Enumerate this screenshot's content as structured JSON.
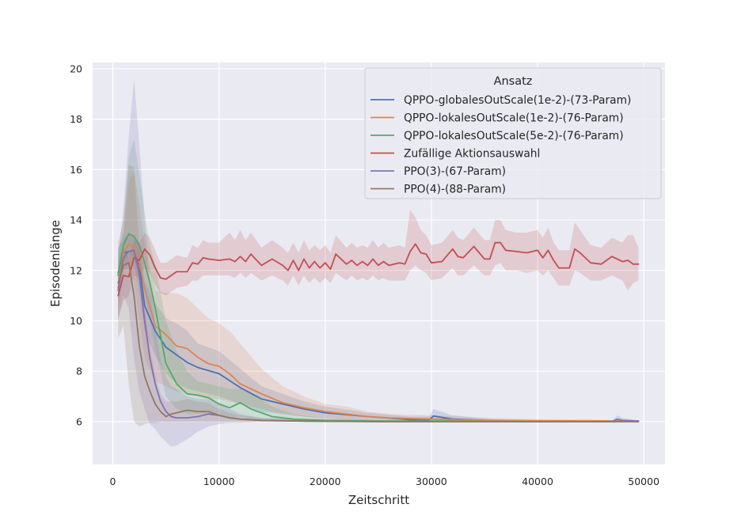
{
  "chart_data": {
    "type": "line",
    "title": "",
    "xlabel": "Zeitschritt",
    "ylabel": "Episodenlänge",
    "xlim": [
      -1900,
      52000
    ],
    "ylim": [
      4.3,
      20.25
    ],
    "xticks": [
      0,
      10000,
      20000,
      30000,
      40000,
      50000
    ],
    "xtick_labels": [
      "0",
      "10000",
      "20000",
      "30000",
      "40000",
      "50000"
    ],
    "yticks": [
      6,
      8,
      10,
      12,
      14,
      16,
      18,
      20
    ],
    "ytick_labels": [
      "6",
      "8",
      "10",
      "12",
      "14",
      "16",
      "18",
      "20"
    ],
    "grid": true,
    "legend": {
      "title": "Ansatz",
      "placement": "top-right"
    },
    "series": [
      {
        "name": "QPPO-globalesOutScale(1e-2)-(73-Param)",
        "color": "#4c72b0",
        "x": [
          500,
          1000,
          1500,
          2000,
          2500,
          3000,
          4000,
          5000,
          6000,
          7000,
          8000,
          10000,
          12000,
          14000,
          16000,
          18000,
          20000,
          24000,
          28000,
          29800,
          30200,
          32000,
          36000,
          45000,
          49500
        ],
        "y": [
          11.9,
          12.7,
          12.75,
          12.8,
          12.2,
          10.6,
          9.6,
          8.95,
          8.65,
          8.35,
          8.15,
          7.9,
          7.35,
          6.9,
          6.7,
          6.5,
          6.35,
          6.2,
          6.08,
          6.07,
          6.22,
          6.1,
          6.03,
          6.02,
          6.02
        ],
        "lower": [
          10.8,
          12.0,
          12.1,
          12.2,
          11.2,
          9.6,
          8.6,
          7.9,
          7.5,
          7.3,
          7.2,
          7.0,
          6.7,
          6.4,
          6.3,
          6.2,
          6.1,
          6.05,
          6.0,
          6.0,
          6.0,
          6.0,
          6.0,
          6.0,
          6.0
        ],
        "upper": [
          12.9,
          13.3,
          13.4,
          13.4,
          13.1,
          11.6,
          10.7,
          10.1,
          9.9,
          9.6,
          9.1,
          8.8,
          8.1,
          7.4,
          7.1,
          6.8,
          6.6,
          6.35,
          6.2,
          6.2,
          6.5,
          6.25,
          6.1,
          6.05,
          6.05
        ]
      },
      {
        "name": "QPPO-lokalesOutScale(1e-2)-(76-Param)",
        "color": "#dd8452",
        "x": [
          500,
          1000,
          1500,
          2000,
          2500,
          3000,
          4000,
          5000,
          6000,
          7000,
          8000,
          9000,
          10000,
          11000,
          12000,
          14000,
          16000,
          18000,
          20000,
          22000,
          24000,
          26000,
          30000,
          35000,
          40000,
          45000,
          49500
        ],
        "y": [
          11.3,
          12.7,
          13.05,
          12.9,
          12.3,
          11.3,
          9.8,
          9.45,
          9.0,
          8.9,
          8.55,
          8.3,
          8.2,
          7.9,
          7.5,
          7.1,
          6.75,
          6.55,
          6.4,
          6.3,
          6.2,
          6.15,
          6.1,
          6.05,
          6.03,
          6.03,
          6.02
        ],
        "lower": [
          10.3,
          12.0,
          12.3,
          11.5,
          10.0,
          8.5,
          7.6,
          7.4,
          7.2,
          7.1,
          7.0,
          6.9,
          6.9,
          6.8,
          6.7,
          6.5,
          6.3,
          6.2,
          6.15,
          6.1,
          6.05,
          6.02,
          6.0,
          6.0,
          6.0,
          6.0,
          6.0
        ],
        "upper": [
          12.3,
          13.3,
          15.5,
          15.9,
          14.6,
          13.0,
          11.2,
          11.1,
          11.1,
          10.9,
          10.5,
          10.1,
          9.9,
          9.6,
          9.1,
          8.1,
          7.4,
          7.0,
          6.7,
          6.6,
          6.4,
          6.3,
          6.25,
          6.15,
          6.1,
          6.08,
          6.05
        ]
      },
      {
        "name": "QPPO-lokalesOutScale(5e-2)-(76-Param)",
        "color": "#55a868",
        "x": [
          500,
          1000,
          1500,
          2000,
          2500,
          3000,
          3500,
          4000,
          5000,
          6000,
          7000,
          8000,
          9000,
          10000,
          11000,
          12000,
          13000,
          15000,
          17000,
          20000,
          25000,
          30000,
          40000,
          49500
        ],
        "y": [
          11.8,
          13.0,
          13.45,
          13.35,
          13.0,
          12.3,
          11.5,
          10.5,
          8.3,
          7.5,
          7.1,
          7.05,
          6.95,
          6.7,
          6.55,
          6.75,
          6.5,
          6.2,
          6.1,
          6.05,
          6.02,
          6.02,
          6.0,
          6.0
        ],
        "lower": [
          11.0,
          12.3,
          12.6,
          12.5,
          11.9,
          11.0,
          10.0,
          8.9,
          7.0,
          6.5,
          6.3,
          6.3,
          6.3,
          6.2,
          6.15,
          6.2,
          6.1,
          6.0,
          6.0,
          6.0,
          6.0,
          6.0,
          6.0,
          6.0
        ],
        "upper": [
          12.8,
          13.6,
          16.5,
          17.2,
          15.8,
          14.3,
          13.0,
          12.2,
          10.0,
          8.8,
          8.0,
          7.6,
          7.5,
          7.4,
          7.3,
          7.3,
          7.1,
          6.6,
          6.3,
          6.12,
          6.06,
          6.06,
          6.02,
          6.02
        ]
      },
      {
        "name": "Zufällige Aktionsauswahl",
        "color": "#c44e52",
        "x": [
          500,
          1000,
          1500,
          2000,
          2500,
          3000,
          3500,
          4000,
          4500,
          5000,
          6000,
          7000,
          7500,
          8000,
          8500,
          9000,
          10000,
          11000,
          11500,
          12000,
          12500,
          13000,
          14000,
          15000,
          16000,
          16500,
          17000,
          17500,
          18000,
          18500,
          19000,
          19500,
          20000,
          20500,
          21000,
          22000,
          22500,
          23000,
          23500,
          24000,
          24500,
          25000,
          25500,
          26000,
          27000,
          27500,
          28000,
          28500,
          29000,
          29500,
          30000,
          31000,
          32000,
          32500,
          33000,
          34000,
          35000,
          35500,
          36000,
          36500,
          37000,
          38000,
          39000,
          40000,
          40500,
          41000,
          41500,
          42000,
          43000,
          43500,
          44000,
          45000,
          46000,
          47000,
          48000,
          48500,
          49000,
          49500
        ],
        "y": [
          11.0,
          11.8,
          11.75,
          12.5,
          12.4,
          12.85,
          12.6,
          12.1,
          11.7,
          11.65,
          11.95,
          11.95,
          12.3,
          12.25,
          12.5,
          12.45,
          12.4,
          12.45,
          12.35,
          12.55,
          12.35,
          12.65,
          12.2,
          12.45,
          12.2,
          12.0,
          12.4,
          12.0,
          12.45,
          12.1,
          12.35,
          12.1,
          12.3,
          12.05,
          12.65,
          12.25,
          12.4,
          12.2,
          12.35,
          12.2,
          12.45,
          12.2,
          12.35,
          12.2,
          12.3,
          12.25,
          12.75,
          13.05,
          12.7,
          12.65,
          12.3,
          12.35,
          12.85,
          12.55,
          12.5,
          12.95,
          12.45,
          12.45,
          13.1,
          13.1,
          12.8,
          12.75,
          12.7,
          12.8,
          12.5,
          12.8,
          12.4,
          12.1,
          12.1,
          12.85,
          12.7,
          12.3,
          12.25,
          12.55,
          12.35,
          12.4,
          12.25,
          12.25
        ],
        "lower": [
          10.1,
          10.8,
          11.0,
          11.8,
          11.7,
          12.1,
          11.9,
          11.4,
          11.1,
          11.0,
          11.3,
          11.4,
          11.6,
          11.6,
          11.8,
          11.8,
          11.8,
          11.8,
          11.7,
          11.9,
          11.7,
          11.9,
          11.6,
          11.8,
          11.6,
          11.4,
          11.8,
          11.4,
          11.8,
          11.5,
          11.7,
          11.5,
          11.7,
          11.5,
          11.9,
          11.6,
          11.8,
          11.6,
          11.7,
          11.6,
          11.8,
          11.6,
          11.7,
          11.6,
          11.6,
          11.6,
          12.0,
          12.2,
          12.0,
          11.9,
          11.6,
          11.7,
          12.1,
          11.8,
          11.8,
          12.2,
          11.8,
          11.8,
          12.2,
          12.3,
          12.0,
          12.0,
          11.9,
          12.0,
          11.8,
          12.0,
          11.7,
          11.4,
          11.4,
          12.0,
          11.9,
          11.6,
          11.6,
          11.8,
          11.6,
          11.2,
          11.5,
          11.6
        ],
        "upper": [
          11.9,
          12.9,
          12.5,
          13.2,
          13.1,
          13.5,
          13.3,
          12.8,
          12.3,
          12.3,
          12.6,
          12.5,
          13.0,
          12.9,
          13.2,
          13.1,
          13.1,
          13.5,
          13.2,
          13.6,
          13.2,
          13.5,
          12.9,
          13.2,
          12.9,
          12.7,
          13.1,
          12.7,
          13.2,
          12.8,
          13.0,
          12.8,
          13.0,
          12.7,
          13.4,
          12.9,
          13.1,
          12.9,
          13.0,
          12.9,
          13.2,
          12.9,
          13.1,
          12.9,
          13.0,
          12.9,
          14.4,
          14.1,
          13.6,
          13.4,
          13.0,
          13.1,
          13.6,
          13.3,
          13.2,
          13.7,
          13.2,
          13.2,
          14.0,
          14.0,
          13.6,
          13.5,
          13.5,
          13.6,
          13.3,
          13.7,
          13.1,
          12.8,
          12.8,
          13.9,
          13.6,
          13.0,
          12.9,
          13.3,
          13.1,
          13.4,
          13.4,
          12.9
        ]
      },
      {
        "name": "PPO(3)-(67-Param)",
        "color": "#8172b3",
        "x": [
          500,
          1000,
          1500,
          2000,
          2500,
          3000,
          3500,
          4000,
          4500,
          5000,
          5500,
          6000,
          7000,
          8000,
          9000,
          10000,
          11000,
          12000,
          14000,
          18000,
          25000,
          30000,
          35000,
          40000,
          47000,
          47500,
          48000,
          49500
        ],
        "y": [
          11.2,
          12.5,
          12.75,
          12.8,
          11.8,
          10.0,
          8.5,
          7.5,
          6.8,
          6.4,
          6.2,
          6.15,
          6.15,
          6.2,
          6.3,
          6.25,
          6.15,
          6.1,
          6.05,
          6.02,
          6.0,
          6.0,
          6.0,
          6.0,
          6.0,
          6.1,
          6.05,
          6.02
        ],
        "lower": [
          10.0,
          11.0,
          10.5,
          8.5,
          7.2,
          6.5,
          5.9,
          5.7,
          5.4,
          5.2,
          5.0,
          5.05,
          5.3,
          5.6,
          5.8,
          5.9,
          5.95,
          5.95,
          6.0,
          6.0,
          6.0,
          6.0,
          6.0,
          6.0,
          6.0,
          6.0,
          6.0,
          6.0
        ],
        "upper": [
          12.4,
          14.5,
          17.3,
          19.6,
          17.0,
          14.0,
          11.5,
          9.8,
          8.5,
          7.8,
          7.4,
          7.3,
          7.0,
          6.9,
          6.9,
          6.7,
          6.5,
          6.3,
          6.15,
          6.1,
          6.03,
          6.03,
          6.02,
          6.02,
          6.02,
          6.25,
          6.15,
          6.05
        ]
      },
      {
        "name": "PPO(4)-(88-Param)",
        "color": "#937860",
        "x": [
          500,
          1000,
          1500,
          2000,
          2500,
          3000,
          3500,
          4000,
          4500,
          5000,
          5500,
          6000,
          7000,
          8000,
          9000,
          10000,
          11000,
          12000,
          14000,
          18000,
          25000,
          30000,
          40000,
          49500
        ],
        "y": [
          11.5,
          12.2,
          12.3,
          11.0,
          9.0,
          7.8,
          7.2,
          6.7,
          6.4,
          6.2,
          6.3,
          6.35,
          6.45,
          6.4,
          6.4,
          6.25,
          6.15,
          6.1,
          6.05,
          6.02,
          6.0,
          6.0,
          6.0,
          6.0
        ],
        "lower": [
          9.3,
          9.8,
          7.5,
          6.0,
          5.8,
          5.9,
          5.95,
          5.95,
          6.0,
          6.0,
          6.0,
          6.0,
          6.0,
          6.0,
          6.0,
          6.0,
          6.0,
          6.0,
          6.0,
          6.0,
          6.0,
          6.0,
          6.0,
          6.0
        ],
        "upper": [
          13.1,
          14.0,
          16.2,
          16.1,
          13.0,
          10.5,
          9.0,
          7.8,
          7.1,
          6.8,
          6.8,
          6.8,
          6.9,
          6.8,
          6.75,
          6.5,
          6.35,
          6.25,
          6.15,
          6.05,
          6.02,
          6.02,
          6.01,
          6.01
        ]
      }
    ]
  }
}
